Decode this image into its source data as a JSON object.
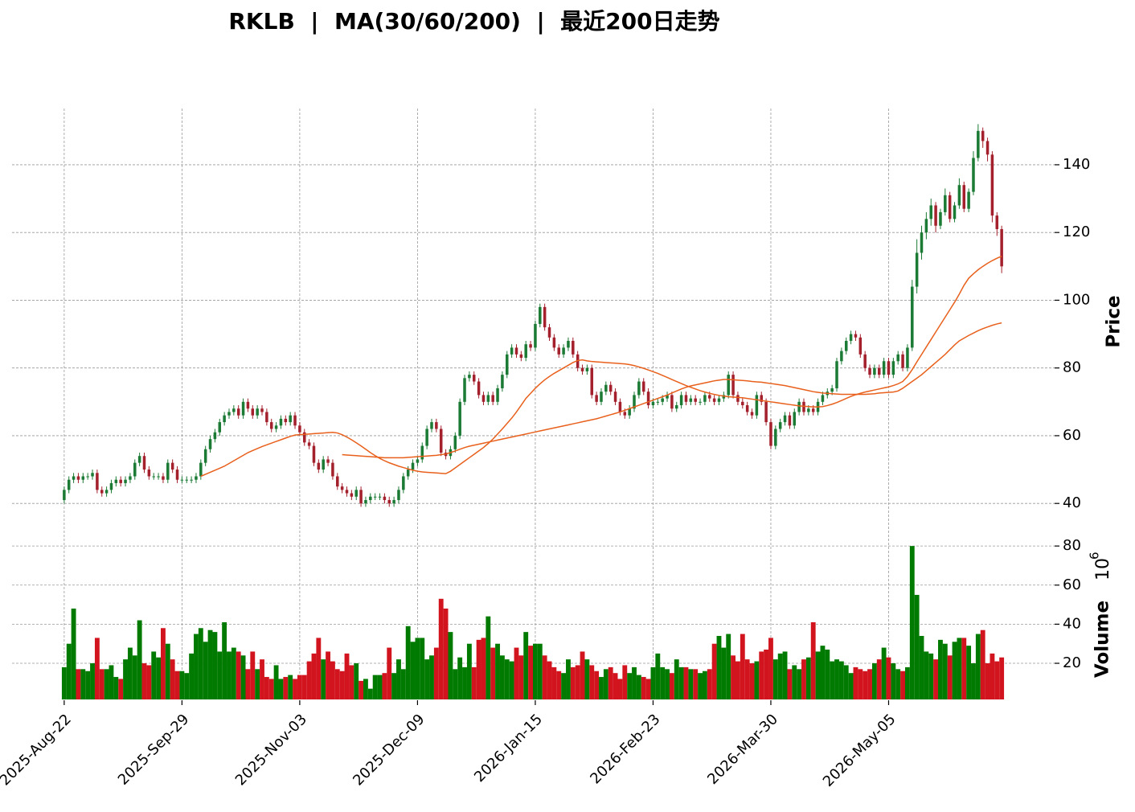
{
  "chart_data": {
    "type": "candlestick",
    "title": "RKLB  |  MA(30/60/200)  |  最近200日走势",
    "ylabel": "Price",
    "y2label": "Volume",
    "y2_offset_base": "10",
    "y2_offset_exponent": "6",
    "xlim": [
      -1,
      200
    ],
    "xticks": [
      {
        "value": 0,
        "label": "2025-Aug-22"
      },
      {
        "value": 25,
        "label": "2025-Sep-29"
      },
      {
        "value": 50,
        "label": "2025-Nov-03"
      },
      {
        "value": 75,
        "label": "2025-Dec-09"
      },
      {
        "value": 100,
        "label": "2026-Jan-15"
      },
      {
        "value": 125,
        "label": "2026-Feb-23"
      },
      {
        "value": 150,
        "label": "2026-Mar-30"
      },
      {
        "value": 175,
        "label": "2026-May-05"
      }
    ],
    "ylim": [
      31.5,
      156.6
    ],
    "yticks": [
      40,
      60,
      80,
      100,
      120,
      140
    ],
    "y2lim": [
      1.5,
      85
    ],
    "y2ticks": [
      20,
      40,
      60,
      80
    ],
    "grid": true,
    "up_color": "#1b7a34",
    "down_color": "#a3202c",
    "volume_up_color": "#007a00",
    "volume_down_color": "#d2141e",
    "open": [
      41,
      44,
      47,
      48,
      47,
      48,
      48,
      49,
      44,
      43,
      44,
      46,
      47,
      46,
      47,
      48,
      52,
      54,
      50,
      48,
      48,
      48,
      47,
      52,
      50,
      47,
      47,
      47,
      47,
      48,
      52,
      56,
      59,
      61,
      64,
      66,
      67,
      68,
      66,
      70,
      68,
      66,
      68,
      67,
      64,
      62,
      63,
      65,
      64,
      66,
      63,
      61,
      58,
      57,
      52,
      50,
      53,
      52,
      48,
      45,
      44,
      43,
      42,
      44,
      40,
      41,
      42,
      42,
      42,
      41,
      40,
      41,
      44,
      48,
      50,
      52,
      53,
      57,
      62,
      64,
      62,
      55,
      54,
      56,
      60,
      70,
      77,
      78,
      76,
      72,
      70,
      72,
      70,
      74,
      78,
      84,
      86,
      84,
      83,
      87,
      86,
      93,
      98,
      92,
      89,
      86,
      84,
      86,
      88,
      84,
      80,
      79,
      80,
      72,
      70,
      73,
      75,
      73,
      70,
      67,
      66,
      68,
      72,
      76,
      73,
      69,
      70,
      70,
      71,
      72,
      68,
      69,
      72,
      70,
      71,
      70,
      70,
      72,
      71,
      70,
      71,
      72,
      78,
      72,
      70,
      69,
      67,
      66,
      72,
      70,
      64,
      57,
      62,
      64,
      66,
      63,
      67,
      70,
      67,
      68,
      67,
      70,
      72,
      73,
      74,
      82,
      85,
      88,
      90,
      89,
      84,
      80,
      78,
      80,
      78,
      82,
      78,
      82,
      84,
      80,
      86,
      104,
      114,
      120,
      124,
      128,
      122,
      126,
      131,
      124,
      128,
      134,
      127,
      132,
      142,
      150,
      147,
      143,
      125,
      121
    ],
    "high": [
      45,
      48,
      49,
      49,
      49,
      49,
      50,
      50,
      45,
      45,
      47,
      48,
      48,
      48,
      49,
      53,
      55,
      55,
      51,
      49,
      49,
      49,
      53,
      53,
      51,
      48,
      48,
      48,
      49,
      53,
      57,
      60,
      62,
      65,
      67,
      68,
      69,
      69,
      71,
      71,
      69,
      69,
      69,
      68,
      65,
      64,
      66,
      66,
      67,
      67,
      64,
      62,
      59,
      58,
      53,
      54,
      54,
      53,
      49,
      46,
      45,
      44,
      45,
      45,
      42,
      43,
      43,
      43,
      43,
      42,
      42,
      45,
      49,
      51,
      53,
      54,
      58,
      63,
      65,
      65,
      63,
      56,
      57,
      61,
      71,
      78,
      79,
      79,
      77,
      73,
      73,
      73,
      75,
      79,
      85,
      87,
      87,
      85,
      88,
      88,
      94,
      99,
      99,
      93,
      90,
      87,
      87,
      89,
      89,
      85,
      81,
      81,
      81,
      73,
      74,
      76,
      76,
      74,
      71,
      68,
      69,
      73,
      77,
      77,
      74,
      71,
      71,
      72,
      73,
      73,
      70,
      73,
      73,
      72,
      72,
      71,
      73,
      73,
      72,
      72,
      73,
      79,
      79,
      73,
      71,
      70,
      68,
      73,
      73,
      71,
      65,
      63,
      65,
      67,
      67,
      68,
      71,
      71,
      69,
      69,
      71,
      73,
      74,
      75,
      83,
      86,
      89,
      91,
      91,
      90,
      85,
      81,
      81,
      81,
      83,
      83,
      83,
      85,
      85,
      87,
      106,
      118,
      122,
      126,
      130,
      129,
      127,
      133,
      132,
      129,
      136,
      135,
      133,
      144,
      152,
      151,
      148,
      144,
      126,
      122
    ],
    "low": [
      40,
      43,
      46,
      46,
      46,
      47,
      47,
      43,
      42,
      42,
      43,
      45,
      45,
      45,
      46,
      47,
      51,
      49,
      47,
      47,
      47,
      46,
      46,
      49,
      46,
      46,
      46,
      46,
      46,
      47,
      51,
      55,
      58,
      60,
      63,
      65,
      66,
      65,
      65,
      67,
      65,
      65,
      66,
      63,
      61,
      61,
      62,
      63,
      63,
      62,
      60,
      57,
      56,
      51,
      49,
      49,
      51,
      47,
      44,
      43,
      42,
      41,
      41,
      39,
      39,
      40,
      41,
      41,
      40,
      39,
      39,
      40,
      43,
      47,
      49,
      51,
      52,
      56,
      61,
      61,
      54,
      53,
      53,
      55,
      59,
      69,
      76,
      75,
      71,
      69,
      69,
      69,
      69,
      73,
      77,
      83,
      83,
      82,
      82,
      85,
      85,
      92,
      91,
      88,
      85,
      83,
      83,
      85,
      83,
      79,
      78,
      78,
      71,
      69,
      69,
      72,
      72,
      69,
      66,
      65,
      65,
      67,
      71,
      72,
      68,
      68,
      69,
      69,
      70,
      67,
      67,
      68,
      69,
      69,
      69,
      69,
      69,
      70,
      69,
      69,
      70,
      71,
      71,
      69,
      68,
      66,
      65,
      65,
      69,
      63,
      56,
      56,
      61,
      63,
      62,
      62,
      66,
      66,
      66,
      66,
      66,
      69,
      71,
      72,
      73,
      81,
      84,
      87,
      88,
      83,
      79,
      77,
      77,
      77,
      77,
      77,
      77,
      81,
      79,
      79,
      85,
      102,
      112,
      118,
      122,
      120,
      121,
      125,
      123,
      123,
      127,
      126,
      126,
      131,
      141,
      145,
      141,
      123,
      119,
      108
    ],
    "close": [
      44,
      47,
      48,
      47,
      48,
      48,
      49,
      44,
      43,
      44,
      46,
      47,
      46,
      47,
      48,
      52,
      54,
      50,
      48,
      48,
      48,
      47,
      52,
      50,
      47,
      47,
      47,
      47,
      48,
      52,
      56,
      59,
      61,
      64,
      66,
      67,
      68,
      66,
      70,
      68,
      66,
      68,
      67,
      64,
      62,
      63,
      65,
      64,
      66,
      63,
      61,
      58,
      57,
      52,
      50,
      53,
      52,
      48,
      45,
      44,
      43,
      42,
      44,
      40,
      41,
      42,
      42,
      42,
      41,
      40,
      41,
      44,
      48,
      50,
      52,
      53,
      57,
      62,
      64,
      62,
      55,
      54,
      56,
      60,
      70,
      77,
      78,
      76,
      72,
      70,
      72,
      70,
      74,
      78,
      84,
      86,
      84,
      83,
      87,
      86,
      93,
      98,
      92,
      89,
      86,
      84,
      86,
      88,
      84,
      80,
      79,
      80,
      72,
      70,
      73,
      75,
      73,
      70,
      67,
      66,
      68,
      72,
      76,
      73,
      69,
      70,
      70,
      71,
      72,
      68,
      69,
      72,
      70,
      71,
      70,
      70,
      72,
      71,
      70,
      71,
      72,
      78,
      72,
      70,
      69,
      67,
      66,
      72,
      70,
      64,
      57,
      62,
      64,
      66,
      63,
      67,
      70,
      67,
      68,
      67,
      70,
      72,
      73,
      74,
      82,
      85,
      88,
      90,
      89,
      84,
      80,
      78,
      80,
      78,
      82,
      78,
      82,
      84,
      80,
      86,
      104,
      114,
      120,
      124,
      128,
      122,
      126,
      131,
      124,
      128,
      134,
      127,
      132,
      142,
      150,
      147,
      143,
      125,
      121,
      110
    ],
    "volume": [
      18,
      30,
      48,
      17,
      17,
      16,
      20,
      33,
      17,
      17,
      19,
      13,
      12,
      22,
      28,
      24,
      42,
      20,
      19,
      26,
      23,
      38,
      30,
      22,
      16,
      16,
      15,
      25,
      35,
      38,
      31,
      37,
      36,
      26,
      41,
      26,
      28,
      26,
      24,
      17,
      26,
      17,
      22,
      13,
      12,
      19,
      12,
      13,
      14,
      12,
      14,
      14,
      21,
      25,
      33,
      22,
      26,
      21,
      17,
      16,
      25,
      19,
      20,
      11,
      12,
      7,
      14,
      14,
      15,
      28,
      15,
      22,
      17,
      39,
      31,
      33,
      33,
      22,
      24,
      28,
      53,
      48,
      36,
      17,
      23,
      18,
      30,
      18,
      32,
      33,
      44,
      28,
      30,
      24,
      22,
      21,
      28,
      24,
      36,
      29,
      30,
      30,
      24,
      21,
      18,
      16,
      15,
      22,
      18,
      19,
      26,
      22,
      19,
      16,
      13,
      17,
      18,
      15,
      12,
      19,
      15,
      18,
      14,
      13,
      12,
      18,
      25,
      18,
      17,
      15,
      22,
      18,
      18,
      17,
      17,
      15,
      16,
      17,
      30,
      34,
      28,
      35,
      24,
      21,
      35,
      22,
      20,
      21,
      26,
      27,
      33,
      22,
      25,
      26,
      17,
      19,
      17,
      22,
      23,
      41,
      26,
      29,
      27,
      21,
      22,
      21,
      19,
      15,
      18,
      17,
      16,
      17,
      20,
      22,
      28,
      23,
      20,
      17,
      16,
      18,
      80,
      55,
      34,
      26,
      25,
      22,
      32,
      30,
      24,
      31,
      33,
      33,
      29,
      20,
      35,
      37,
      20,
      25,
      21,
      23
    ],
    "lines": [
      {
        "color": "#e8601c",
        "values": [
          null,
          null,
          null,
          null,
          null,
          null,
          null,
          null,
          null,
          null,
          null,
          null,
          null,
          null,
          null,
          null,
          null,
          null,
          null,
          null,
          null,
          null,
          null,
          null,
          null,
          null,
          null,
          null,
          null,
          48,
          48.6,
          49.2,
          49.8,
          50.4,
          51,
          51.8,
          52.6,
          53.4,
          54.2,
          55,
          55.6,
          56.2,
          56.8,
          57.3,
          57.8,
          58.3,
          58.8,
          59.3,
          59.8,
          60.2,
          60.3,
          60.4,
          60.5,
          60.6,
          60.7,
          60.8,
          60.9,
          61,
          60.8,
          60.3,
          59.6,
          58.8,
          57.9,
          57,
          56,
          55,
          54.1,
          53.3,
          52.6,
          52,
          51.5,
          51,
          50.6,
          50.2,
          49.8,
          49.5,
          49.3,
          49.2,
          49.1,
          49,
          48.9,
          48.8,
          49.5,
          50.5,
          51.5,
          52.5,
          53.5,
          54.5,
          55.5,
          56.5,
          57.7,
          59,
          60.5,
          62,
          63.6,
          65.2,
          67,
          69,
          71,
          72.5,
          74,
          75.3,
          76.5,
          77.5,
          78.4,
          79.2,
          80,
          80.8,
          81.6,
          82.2,
          82.4,
          82.1,
          81.9,
          81.8,
          81.7,
          81.6,
          81.5,
          81.4,
          81.3,
          81.2,
          81,
          80.7,
          80.3,
          79.9,
          79.4,
          78.9,
          78.4,
          77.8,
          77.2,
          76.6,
          76,
          75.4,
          74.8,
          74.3,
          73.8,
          73.3,
          72.9,
          72.5,
          72.2,
          71.9,
          71.7,
          71.5,
          71.4,
          71.3,
          71.2,
          71,
          70.8,
          70.6,
          70.4,
          70.2,
          70,
          69.8,
          69.6,
          69.4,
          69.2,
          69,
          68.8,
          68.7,
          68.6,
          68.5,
          68.5,
          68.6,
          68.9,
          69.3,
          69.8,
          70.4,
          71,
          71.6,
          72.1,
          72.5,
          72.9,
          73.2,
          73.5,
          73.8,
          74.1,
          74.4,
          74.8,
          75.3,
          76,
          77.5,
          79.5,
          81.8,
          84,
          86.2,
          88.4,
          90.6,
          92.8,
          95,
          97.2,
          99.4,
          101.8,
          104.4,
          106.5,
          107.8,
          109,
          110,
          110.9,
          111.7,
          112.4,
          113
        ]
      },
      {
        "color": "#e8601c",
        "values": [
          null,
          null,
          null,
          null,
          null,
          null,
          null,
          null,
          null,
          null,
          null,
          null,
          null,
          null,
          null,
          null,
          null,
          null,
          null,
          null,
          null,
          null,
          null,
          null,
          null,
          null,
          null,
          null,
          null,
          null,
          null,
          null,
          null,
          null,
          null,
          null,
          null,
          null,
          null,
          null,
          null,
          null,
          null,
          null,
          null,
          null,
          null,
          null,
          null,
          null,
          null,
          null,
          null,
          null,
          null,
          null,
          null,
          null,
          null,
          54.4,
          54.3,
          54.2,
          54.1,
          54,
          53.9,
          53.8,
          53.7,
          53.6,
          53.5,
          53.5,
          53.5,
          53.5,
          53.5,
          53.6,
          53.7,
          53.8,
          53.9,
          54,
          54.1,
          54.2,
          54.4,
          54.6,
          55,
          55.5,
          56,
          56.5,
          56.9,
          57.2,
          57.5,
          57.8,
          58.1,
          58.4,
          58.7,
          59,
          59.3,
          59.6,
          59.9,
          60.2,
          60.5,
          60.8,
          61.1,
          61.4,
          61.7,
          62,
          62.3,
          62.6,
          62.9,
          63.2,
          63.5,
          63.8,
          64.1,
          64.4,
          64.7,
          65,
          65.4,
          65.8,
          66.2,
          66.6,
          67,
          67.5,
          68,
          68.5,
          69,
          69.5,
          70,
          70.5,
          71,
          71.5,
          72,
          72.6,
          73.2,
          73.8,
          74.3,
          74.7,
          75,
          75.3,
          75.6,
          75.9,
          76.2,
          76.4,
          76.6,
          76.6,
          76.5,
          76.4,
          76.3,
          76.2,
          76,
          75.9,
          75.8,
          75.6,
          75.4,
          75.2,
          75,
          74.8,
          74.5,
          74.2,
          73.9,
          73.6,
          73.3,
          73,
          72.8,
          72.6,
          72.5,
          72.4,
          72.3,
          72.2,
          72.2,
          72.2,
          72.2,
          72.2,
          72.2,
          72.3,
          72.4,
          72.6,
          72.7,
          72.8,
          72.9,
          73.2,
          74,
          75,
          76,
          77,
          78,
          79.2,
          80.4,
          81.6,
          82.8,
          84,
          85.4,
          86.8,
          88,
          88.8,
          89.6,
          90.3,
          91,
          91.6,
          92.1,
          92.6,
          93,
          93.3
        ]
      }
    ]
  }
}
